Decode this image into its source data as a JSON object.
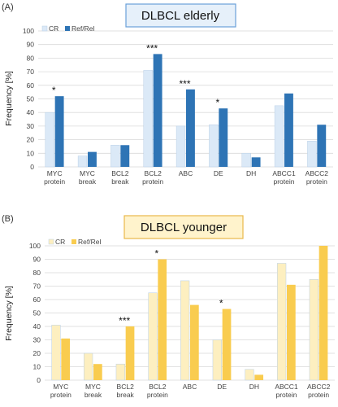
{
  "chart_data": [
    {
      "type": "bar",
      "panel_label": "(A)",
      "title": "DLBCL elderly",
      "ylabel": "Frequency [%]",
      "ylim": [
        0,
        100
      ],
      "yticks": [
        "0",
        "10",
        "20",
        "30",
        "40",
        "50",
        "60",
        "70",
        "80",
        "90",
        "100"
      ],
      "categories": [
        [
          "MYC",
          "protein"
        ],
        [
          "MYC",
          "break"
        ],
        [
          "BCL2",
          "break"
        ],
        [
          "BCL2",
          "protein"
        ],
        [
          "ABC"
        ],
        [
          "DE"
        ],
        [
          "DH"
        ],
        [
          "ABCC1",
          "protein"
        ],
        [
          "ABCC2",
          "protein"
        ]
      ],
      "series": [
        {
          "name": "CR",
          "color": "#dbe9f7",
          "values": [
            40,
            8,
            16,
            71,
            30,
            31,
            10,
            45,
            19
          ]
        },
        {
          "name": "Ref/Rel",
          "color": "#2e74b5",
          "values": [
            52,
            11,
            16,
            83,
            57,
            43,
            7,
            54,
            31
          ]
        }
      ],
      "annotations": [
        "*",
        "",
        "",
        "***",
        "***",
        "*",
        "",
        "",
        ""
      ],
      "title_box": {
        "fill": "#e6f0fa",
        "stroke": "#6aa0d8"
      },
      "legend_position": "top-left",
      "grid": true
    },
    {
      "type": "bar",
      "panel_label": "(B)",
      "title": "DLBCL younger",
      "ylabel": "Frequency [%]",
      "ylim": [
        0,
        100
      ],
      "yticks": [
        "0",
        "10",
        "20",
        "30",
        "40",
        "50",
        "60",
        "70",
        "80",
        "90",
        "100"
      ],
      "categories": [
        [
          "MYC",
          "protein"
        ],
        [
          "MYC",
          "break"
        ],
        [
          "BCL2",
          "break"
        ],
        [
          "BCL2",
          "protein"
        ],
        [
          "ABC"
        ],
        [
          "DE"
        ],
        [
          "DH"
        ],
        [
          "ABCC1",
          "protein"
        ],
        [
          "ABCC2",
          "protein"
        ]
      ],
      "series": [
        {
          "name": "CR",
          "color": "#fdefc0",
          "values": [
            41,
            20,
            12,
            65,
            74,
            30,
            8,
            87,
            75
          ]
        },
        {
          "name": "Ref/Rel",
          "color": "#f9cc4f",
          "values": [
            31,
            12,
            40,
            90,
            56,
            53,
            4,
            71,
            100
          ]
        }
      ],
      "annotations": [
        "",
        "",
        "***",
        "*",
        "",
        "*",
        "",
        "",
        ""
      ],
      "title_box": {
        "fill": "#fff3cc",
        "stroke": "#e8b84a"
      },
      "legend_position": "top-left",
      "grid": true
    }
  ]
}
